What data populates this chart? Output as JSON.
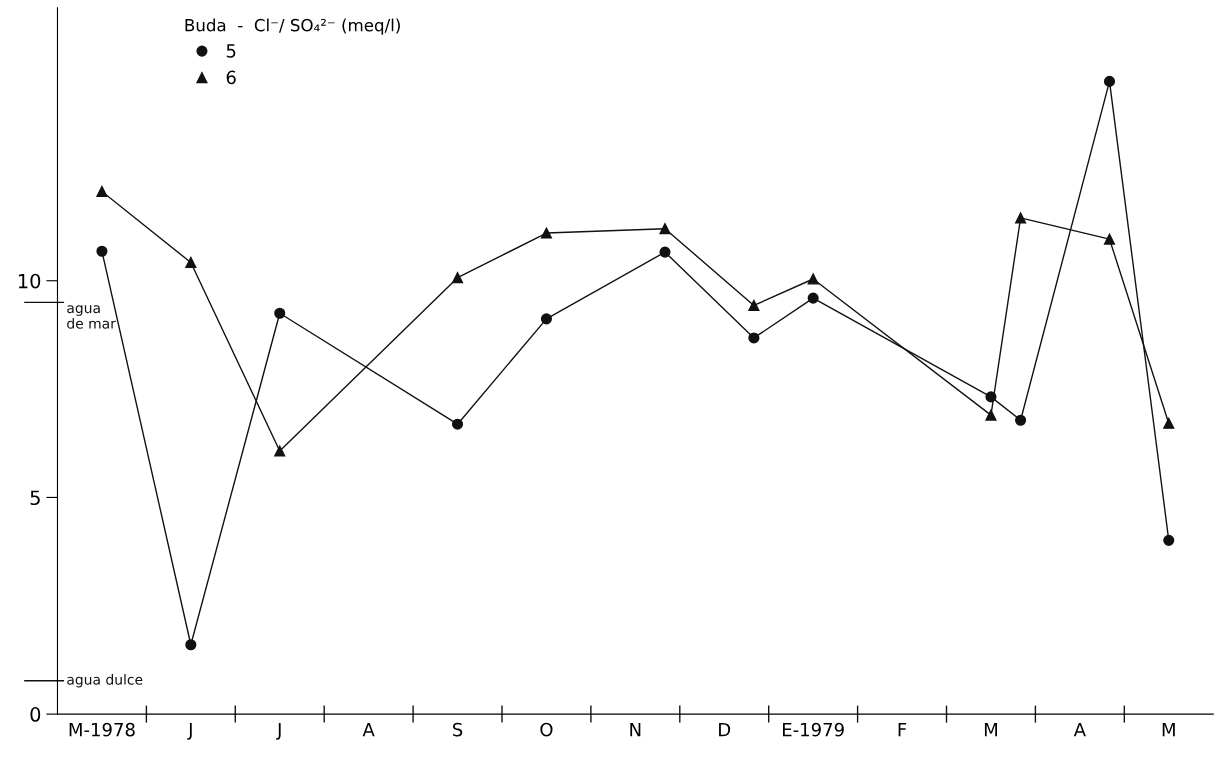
{
  "chart_data": {
    "type": "line",
    "legend_title": "Buda  -  Cl⁻/ SO₄²⁻ (meq/l)",
    "legend": "top left",
    "grid": false,
    "categories": [
      null,
      "M-1978",
      null,
      null,
      "J",
      null,
      null,
      "J",
      null,
      null,
      "A",
      null,
      null,
      "S",
      null,
      null,
      "O",
      null,
      null,
      "N",
      null,
      null,
      "D",
      null,
      null,
      "E-1979",
      null,
      null,
      "F",
      null,
      null,
      "M",
      null,
      null,
      "A",
      null,
      null,
      "M",
      null
    ],
    "series": [
      {
        "name": "5",
        "color": "#111111",
        "marker": "circle",
        "values": [
          null,
          10.68,
          null,
          null,
          1.6,
          null,
          null,
          9.25,
          null,
          null,
          null,
          null,
          null,
          6.69,
          null,
          null,
          9.12,
          null,
          null,
          null,
          10.66,
          null,
          null,
          8.68,
          null,
          9.6,
          null,
          null,
          null,
          null,
          null,
          7.32,
          6.78,
          null,
          null,
          14.6,
          null,
          4.01,
          null
        ]
      },
      {
        "name": "6",
        "color": "#111111",
        "marker": "triangle",
        "values": [
          null,
          12.06,
          null,
          null,
          10.42,
          null,
          null,
          6.07,
          null,
          null,
          null,
          null,
          null,
          10.07,
          null,
          null,
          11.1,
          null,
          null,
          null,
          11.2,
          null,
          null,
          9.43,
          null,
          10.04,
          null,
          null,
          null,
          null,
          null,
          6.9,
          11.45,
          null,
          null,
          10.96,
          null,
          6.71,
          null
        ]
      }
    ],
    "ylim": [
      0,
      16.3
    ],
    "yticks": [
      0,
      5,
      10
    ],
    "ref_lines": [
      {
        "axis": "y",
        "value": 9.5,
        "label": "agua\nde mar",
        "color": "#111111"
      },
      {
        "axis": "y",
        "value": 0.77,
        "label": "agua dulce",
        "color": "#111111"
      }
    ]
  }
}
